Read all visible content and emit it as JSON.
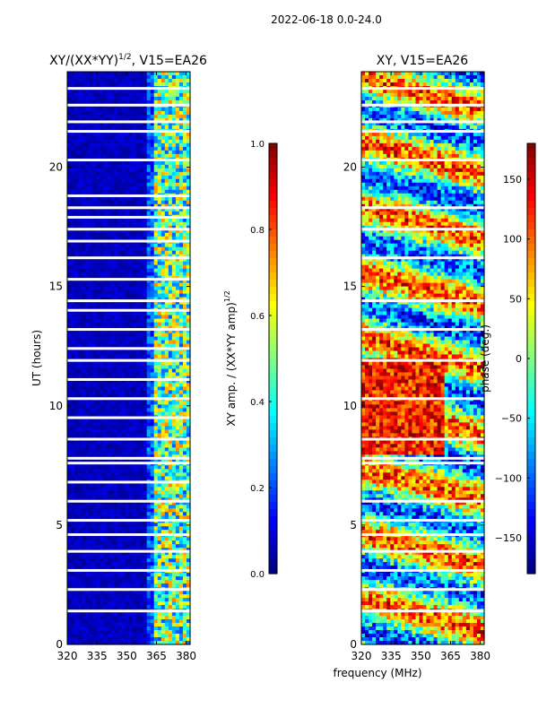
{
  "figure_title": "2022-06-18 0.0-24.0",
  "shared_xlabel": "frequency (MHz)",
  "colormap": [
    "#00007f",
    "#0000ff",
    "#007fff",
    "#00ffff",
    "#7fff7f",
    "#ffff00",
    "#ff7f00",
    "#ff0000",
    "#7f0000"
  ],
  "chart_data": [
    {
      "type": "heatmap",
      "title": "XY/(XX*YY)",
      "title_power": "1/2",
      "title_suffix": ", V15=EA26",
      "xlabel": "",
      "ylabel": "UT (hours)",
      "xlim": [
        320,
        382
      ],
      "ylim": [
        0,
        24
      ],
      "xticks": [
        320,
        335,
        350,
        365,
        380
      ],
      "yticks": [
        0,
        5,
        10,
        15,
        20
      ],
      "colorbar": {
        "label": "XY amp. / (XX*YY amp)",
        "label_power": "1/2",
        "range": [
          0.0,
          1.0
        ],
        "ticks": [
          "0.0",
          "0.2",
          "0.4",
          "0.6",
          "0.8",
          "1.0"
        ]
      },
      "gaps_ut_hours": [
        1.4,
        2.3,
        3.1,
        3.9,
        4.6,
        5.2,
        6.0,
        6.8,
        7.6,
        7.8,
        8.6,
        9.5,
        10.3,
        11.1,
        11.9,
        12.4,
        13.2,
        14.0,
        14.4,
        15.3,
        16.2,
        16.9,
        17.4,
        17.9,
        18.3,
        18.8,
        20.3,
        21.5,
        21.9,
        22.6,
        23.3
      ]
    },
    {
      "type": "heatmap",
      "title": "XY, V15=EA26",
      "xlabel": "",
      "ylabel": "",
      "xlim": [
        320,
        382
      ],
      "ylim": [
        0,
        24
      ],
      "xticks": [
        320,
        335,
        350,
        365,
        380
      ],
      "yticks": [
        0,
        5,
        10,
        15,
        20
      ],
      "colorbar": {
        "label": "phase (deg.)",
        "range": [
          -180,
          180
        ],
        "ticks": [
          "−150",
          "−100",
          "−50",
          "0",
          "50",
          "100",
          "150"
        ]
      },
      "gaps_ut_hours": [
        1.4,
        2.3,
        3.1,
        3.9,
        4.6,
        5.2,
        6.0,
        7.6,
        7.8,
        8.6,
        10.3,
        11.9,
        13.2,
        14.4,
        16.2,
        17.4,
        18.3,
        20.3,
        21.5,
        21.9,
        22.6,
        23.3
      ]
    }
  ]
}
